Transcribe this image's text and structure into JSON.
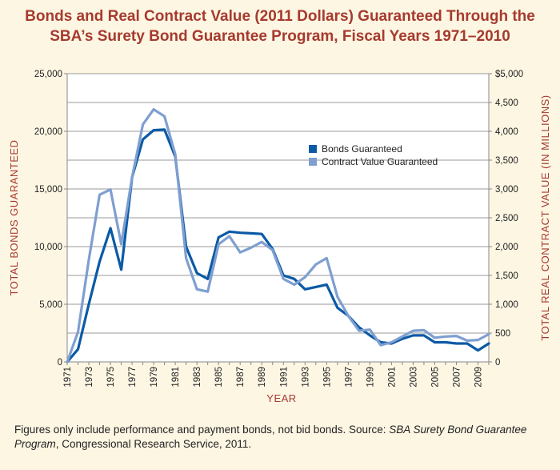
{
  "title_line1": "Bonds and Real Contract Value (2011 Dollars) Guaranteed Through the",
  "title_line2": "SBA’s Surety Bond Guarantee Program, Fiscal Years 1971–2010",
  "footer": {
    "prefix": "Figures only include performance and payment bonds, not bid bonds. Source: ",
    "source_italic": "SBA Surety Bond Guarantee Program",
    "suffix": ", Congressional Research Service, 2011."
  },
  "colors": {
    "bonds": "#0b5aa6",
    "contract": "#7f9fd0",
    "accent": "#a63a2e",
    "background": "#fdf6e3"
  },
  "chart_data": {
    "type": "line",
    "xlabel": "YEAR",
    "ylabel_left": "TOTAL BONDS GUARANTEED",
    "ylabel_right": "TOTAL REAL CONTRACT VALUE (IN MILLIONS)",
    "x_ticks": [
      "1971",
      "1973",
      "1975",
      "1977",
      "1979",
      "1981",
      "1983",
      "1985",
      "1987",
      "1989",
      "1991",
      "1993",
      "1995",
      "1997",
      "1999",
      "2001",
      "2003",
      "2005",
      "2007",
      "2009"
    ],
    "y_left_ticks": [
      "0",
      "5,000",
      "10,000",
      "15,000",
      "20,000",
      "25,000"
    ],
    "y_right_ticks": [
      "0",
      "500",
      "1,000",
      "1,500",
      "2,000",
      "2,500",
      "3,000",
      "3,500",
      "4,000",
      "4,500",
      "$5,000"
    ],
    "ylim_left": [
      0,
      25000
    ],
    "ylim_right": [
      0,
      5000
    ],
    "xlim": [
      1971,
      2010
    ],
    "legend_position": "upper-right",
    "x": [
      1971,
      1972,
      1973,
      1974,
      1975,
      1976,
      1977,
      1978,
      1979,
      1980,
      1981,
      1982,
      1983,
      1984,
      1985,
      1986,
      1987,
      1988,
      1989,
      1990,
      1991,
      1992,
      1993,
      1994,
      1995,
      1996,
      1997,
      1998,
      1999,
      2000,
      2001,
      2002,
      2003,
      2004,
      2005,
      2006,
      2007,
      2008,
      2009,
      2010
    ],
    "series": [
      {
        "name": "Bonds Guaranteed",
        "axis": "left",
        "values": [
          0,
          1100,
          5000,
          8700,
          11600,
          8000,
          16000,
          19300,
          20100,
          20150,
          17800,
          10000,
          7700,
          7200,
          10800,
          11300,
          11200,
          11150,
          11100,
          9800,
          7500,
          7200,
          6300,
          6500,
          6700,
          4700,
          4000,
          3000,
          2300,
          1700,
          1600,
          2000,
          2300,
          2300,
          1700,
          1700,
          1600,
          1600,
          1000,
          1600
        ]
      },
      {
        "name": "Contract Value Guaranteed",
        "axis": "right",
        "values": [
          0,
          520,
          1770,
          2900,
          2990,
          2040,
          3200,
          4120,
          4380,
          4260,
          3600,
          1800,
          1260,
          1220,
          2040,
          2180,
          1900,
          1980,
          2080,
          1940,
          1440,
          1340,
          1470,
          1690,
          1800,
          1130,
          800,
          540,
          560,
          290,
          340,
          440,
          540,
          550,
          420,
          440,
          450,
          370,
          380,
          480
        ]
      }
    ]
  }
}
